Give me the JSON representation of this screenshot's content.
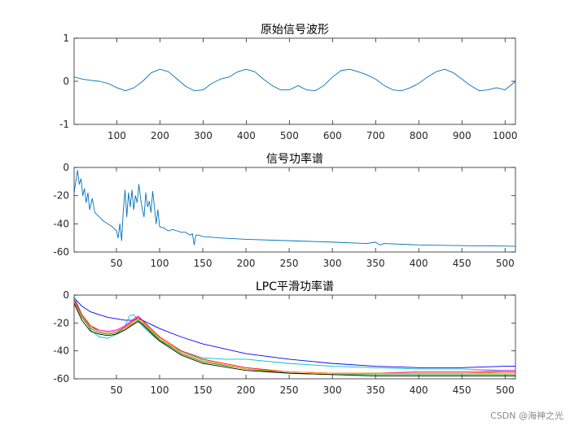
{
  "figure": {
    "watermark": "CSDN @海神之光"
  },
  "chart_data": [
    {
      "type": "line",
      "title": "原始信号波形",
      "xlabel": "",
      "ylabel": "",
      "xlim": [
        1,
        1024
      ],
      "ylim": [
        -1,
        1
      ],
      "xticks": [
        100,
        200,
        300,
        400,
        500,
        600,
        700,
        800,
        900,
        1000
      ],
      "yticks": [
        -1,
        0,
        1
      ],
      "grid": false,
      "series": [
        {
          "color": "#0072BD",
          "x": [
            1,
            20,
            40,
            60,
            80,
            100,
            120,
            140,
            160,
            180,
            200,
            220,
            240,
            260,
            280,
            300,
            320,
            340,
            360,
            380,
            400,
            420,
            440,
            460,
            480,
            500,
            520,
            540,
            560,
            580,
            600,
            620,
            640,
            660,
            680,
            700,
            720,
            740,
            760,
            780,
            800,
            820,
            840,
            860,
            880,
            900,
            920,
            940,
            960,
            980,
            1000,
            1024
          ],
          "y": [
            0.1,
            0.05,
            0.02,
            0.0,
            -0.05,
            -0.15,
            -0.22,
            -0.15,
            0.0,
            0.2,
            0.28,
            0.22,
            0.05,
            -0.12,
            -0.22,
            -0.2,
            -0.05,
            0.05,
            0.1,
            0.22,
            0.28,
            0.22,
            0.05,
            -0.1,
            -0.2,
            -0.2,
            -0.1,
            -0.2,
            -0.22,
            -0.1,
            0.1,
            0.25,
            0.28,
            0.22,
            0.15,
            0.05,
            -0.1,
            -0.2,
            -0.22,
            -0.15,
            -0.05,
            0.1,
            0.22,
            0.28,
            0.2,
            0.05,
            -0.1,
            -0.22,
            -0.2,
            -0.15,
            -0.2,
            0.0
          ]
        }
      ]
    },
    {
      "type": "line",
      "title": "信号功率谱",
      "xlabel": "",
      "ylabel": "",
      "xlim": [
        1,
        512
      ],
      "ylim": [
        -60,
        0
      ],
      "xticks": [
        50,
        100,
        150,
        200,
        250,
        300,
        350,
        400,
        450,
        500
      ],
      "yticks": [
        0,
        -20,
        -40,
        -60
      ],
      "grid": false,
      "series": [
        {
          "color": "#0072BD",
          "x": [
            1,
            3,
            5,
            7,
            9,
            11,
            13,
            15,
            17,
            19,
            22,
            25,
            30,
            35,
            40,
            45,
            50,
            52,
            54,
            56,
            58,
            60,
            62,
            64,
            66,
            68,
            70,
            72,
            74,
            76,
            78,
            80,
            82,
            84,
            86,
            88,
            90,
            92,
            94,
            96,
            98,
            100,
            105,
            110,
            115,
            120,
            125,
            130,
            135,
            138,
            140,
            142,
            145,
            150,
            170,
            200,
            250,
            300,
            340,
            350,
            355,
            360,
            400,
            450,
            500,
            512
          ],
          "y": [
            -18,
            -10,
            -2,
            -12,
            -8,
            -20,
            -15,
            -25,
            -18,
            -30,
            -22,
            -32,
            -35,
            -38,
            -40,
            -42,
            -45,
            -50,
            -40,
            -52,
            -30,
            -16,
            -35,
            -18,
            -28,
            -16,
            -30,
            -20,
            -25,
            -12,
            -22,
            -30,
            -35,
            -18,
            -28,
            -24,
            -32,
            -17,
            -28,
            -40,
            -30,
            -42,
            -43,
            -45,
            -44,
            -45,
            -46,
            -46,
            -48,
            -47,
            -55,
            -48,
            -48,
            -49,
            -50,
            -51,
            -52,
            -53,
            -54,
            -53,
            -55,
            -54,
            -55,
            -55.5,
            -55.8,
            -56
          ]
        }
      ]
    },
    {
      "type": "line",
      "title": "LPC平滑功率谱",
      "xlabel": "",
      "ylabel": "",
      "xlim": [
        1,
        512
      ],
      "ylim": [
        -60,
        0
      ],
      "xticks": [
        50,
        100,
        150,
        200,
        250,
        300,
        350,
        400,
        450,
        500
      ],
      "yticks": [
        0,
        -20,
        -40,
        -60
      ],
      "grid": false,
      "series": [
        {
          "color": "#0000FF",
          "x": [
            1,
            10,
            20,
            30,
            40,
            50,
            60,
            70,
            75,
            80,
            90,
            100,
            125,
            150,
            200,
            250,
            300,
            350,
            400,
            450,
            500,
            512
          ],
          "y": [
            -2,
            -8,
            -12,
            -14,
            -16,
            -17,
            -18,
            -18,
            -17,
            -18,
            -21,
            -24,
            -30,
            -35,
            -42,
            -46,
            -49,
            -51,
            -52,
            -52,
            -51,
            -51
          ]
        },
        {
          "color": "#00BFBF",
          "x": [
            1,
            10,
            20,
            30,
            40,
            50,
            60,
            65,
            70,
            75,
            80,
            90,
            100,
            125,
            150,
            175,
            200,
            250,
            300,
            350,
            400,
            450,
            500,
            512
          ],
          "y": [
            -1,
            -14,
            -25,
            -30,
            -31,
            -28,
            -22,
            -15,
            -14,
            -18,
            -22,
            -28,
            -33,
            -40,
            -45,
            -46,
            -46,
            -49,
            -51,
            -52,
            -53,
            -53,
            -54,
            -54
          ]
        },
        {
          "color": "#FF00FF",
          "x": [
            1,
            10,
            20,
            30,
            40,
            50,
            60,
            70,
            75,
            80,
            90,
            100,
            125,
            150,
            200,
            250,
            300,
            350,
            400,
            450,
            500,
            512
          ],
          "y": [
            -4,
            -15,
            -22,
            -25,
            -26,
            -25,
            -22,
            -17,
            -15,
            -18,
            -25,
            -31,
            -41,
            -47,
            -53,
            -55,
            -56,
            -56,
            -55,
            -55,
            -54,
            -54
          ]
        },
        {
          "color": "#FF0000",
          "x": [
            1,
            10,
            20,
            30,
            40,
            50,
            60,
            70,
            75,
            80,
            90,
            100,
            125,
            150,
            200,
            250,
            300,
            350,
            400,
            450,
            500,
            512
          ],
          "y": [
            -3,
            -14,
            -22,
            -26,
            -27,
            -26,
            -23,
            -18,
            -16,
            -18,
            -24,
            -30,
            -40,
            -46,
            -52,
            -55,
            -56,
            -56,
            -56,
            -56,
            -55,
            -55
          ]
        },
        {
          "color": "#00A000",
          "x": [
            1,
            10,
            20,
            30,
            40,
            50,
            60,
            70,
            75,
            80,
            90,
            100,
            125,
            150,
            200,
            250,
            300,
            350,
            400,
            450,
            500,
            512
          ],
          "y": [
            -5,
            -16,
            -24,
            -27,
            -28,
            -27,
            -24,
            -20,
            -18,
            -20,
            -26,
            -32,
            -42,
            -48,
            -53,
            -56,
            -57,
            -57,
            -57,
            -57,
            -57,
            -57
          ]
        },
        {
          "color": "#000000",
          "x": [
            1,
            10,
            20,
            30,
            40,
            50,
            60,
            70,
            75,
            80,
            90,
            100,
            125,
            150,
            200,
            250,
            300,
            350,
            400,
            450,
            500,
            512
          ],
          "y": [
            -6,
            -18,
            -26,
            -28,
            -29,
            -28,
            -25,
            -21,
            -19,
            -21,
            -27,
            -33,
            -43,
            -49,
            -54,
            -56,
            -57,
            -58,
            -58,
            -58,
            -58,
            -58
          ]
        },
        {
          "color": "#FFA500",
          "x": [
            1,
            10,
            20,
            30,
            40,
            50,
            60,
            70,
            75,
            80,
            90,
            100,
            125,
            150,
            200,
            250,
            300,
            350,
            400,
            450,
            500,
            512
          ],
          "y": [
            -5,
            -15,
            -23,
            -26,
            -27,
            -26,
            -24,
            -19,
            -17,
            -19,
            -25,
            -31,
            -41,
            -47,
            -53,
            -55,
            -56,
            -56,
            -56,
            -56,
            -56,
            -56
          ]
        }
      ]
    }
  ]
}
